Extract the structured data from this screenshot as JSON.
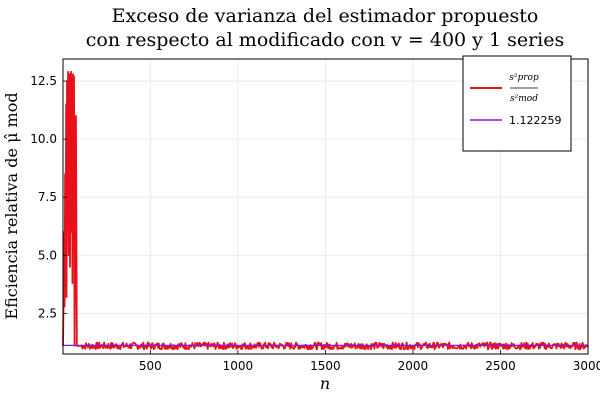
{
  "chart_data": {
    "type": "line",
    "title_line1": "Exceso de varianza del estimador propuesto",
    "title_line2": "con respecto al modificado con v = 400 y 1 series",
    "xlabel": "n",
    "ylabel": "Eficiencia relativa de μ̂ mod",
    "xlim": [
      1,
      3000
    ],
    "ylim": [
      0.75,
      13.45
    ],
    "xticks": [
      500,
      1000,
      1500,
      2000,
      2500,
      3000
    ],
    "yticks": [
      2.5,
      5.0,
      7.5,
      10.0,
      12.5
    ],
    "ytick_labels": [
      "2.5",
      "5.0",
      "7.5",
      "10.0",
      "12.5"
    ],
    "grid": true,
    "legend_position": "top-right",
    "series": [
      {
        "name_numerator": "s²prop",
        "name_denominator": "s²mod",
        "color": "#e8101a",
        "spikes": [
          [
            1,
            1.1
          ],
          [
            5,
            3.5
          ],
          [
            8,
            6.0
          ],
          [
            10,
            2.8
          ],
          [
            13,
            8.5
          ],
          [
            16,
            4.0
          ],
          [
            19,
            11.5
          ],
          [
            21,
            3.2
          ],
          [
            24,
            12.5
          ],
          [
            27,
            6.5
          ],
          [
            30,
            12.9
          ],
          [
            33,
            5.0
          ],
          [
            36,
            10.5
          ],
          [
            38,
            12.8
          ],
          [
            41,
            4.5
          ],
          [
            44,
            11.0
          ],
          [
            47,
            12.9
          ],
          [
            50,
            6.0
          ],
          [
            53,
            12.6
          ],
          [
            55,
            3.8
          ],
          [
            58,
            12.8
          ],
          [
            61,
            9.5
          ],
          [
            64,
            12.7
          ],
          [
            67,
            1.1
          ],
          [
            75,
            11.0
          ],
          [
            80,
            1.1
          ],
          [
            90,
            1.1
          ],
          [
            100,
            1.1
          ]
        ],
        "baseline": 1.1,
        "noise": 0.15
      },
      {
        "name": "1.122259",
        "value": 1.122259,
        "color": "#8b1ac8"
      }
    ]
  }
}
